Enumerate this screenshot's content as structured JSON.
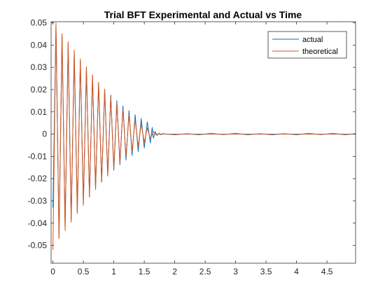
{
  "colors": {
    "actual": "#0072BD",
    "theoretical": "#D95319",
    "axis": "#262626",
    "background": "#ffffff"
  },
  "chart_data": {
    "type": "line",
    "title": "Trial BFT Experimental and Actual vs Time",
    "xlabel": "",
    "ylabel": "",
    "xlim": [
      -0.03,
      4.97
    ],
    "ylim": [
      -0.058,
      0.0505
    ],
    "xticks": [
      0,
      0.5,
      1,
      1.5,
      2,
      2.5,
      3,
      3.5,
      4,
      4.5
    ],
    "xtick_labels": [
      "0",
      "0.5",
      "1",
      "1.5",
      "2",
      "2.5",
      "3",
      "3.5",
      "4",
      "4.5"
    ],
    "yticks": [
      -0.05,
      -0.04,
      -0.03,
      -0.02,
      -0.01,
      0,
      0.01,
      0.02,
      0.03,
      0.04,
      0.05
    ],
    "ytick_labels": [
      "-0.05",
      "-0.04",
      "-0.03",
      "-0.02",
      "-0.01",
      "0",
      "0.01",
      "0.02",
      "0.03",
      "0.04",
      "0.05"
    ],
    "grid": false,
    "legend_position": "top-right",
    "series": [
      {
        "name": "actual",
        "color": "#0072BD",
        "points": [
          [
            0.0,
            -0.033
          ],
          [
            0.05,
            0.048
          ],
          [
            0.1,
            -0.0463
          ],
          [
            0.15,
            0.044
          ],
          [
            0.2,
            -0.0423
          ],
          [
            0.25,
            0.0405
          ],
          [
            0.3,
            -0.0385
          ],
          [
            0.35,
            0.0366
          ],
          [
            0.4,
            -0.0348
          ],
          [
            0.45,
            0.033
          ],
          [
            0.5,
            -0.0312
          ],
          [
            0.55,
            0.0295
          ],
          [
            0.6,
            -0.0278
          ],
          [
            0.65,
            0.0262
          ],
          [
            0.7,
            -0.0246
          ],
          [
            0.75,
            0.0231
          ],
          [
            0.8,
            -0.0216
          ],
          [
            0.85,
            0.0202
          ],
          [
            0.9,
            -0.0188
          ],
          [
            0.95,
            0.0175
          ],
          [
            1.0,
            -0.0162
          ],
          [
            1.05,
            0.015
          ],
          [
            1.1,
            -0.0138
          ],
          [
            1.15,
            0.0127
          ],
          [
            1.2,
            -0.0116
          ],
          [
            1.25,
            0.0106
          ],
          [
            1.3,
            -0.0096
          ],
          [
            1.35,
            0.0087
          ],
          [
            1.4,
            -0.0078
          ],
          [
            1.45,
            0.007
          ],
          [
            1.5,
            -0.0062
          ],
          [
            1.55,
            0.0055
          ],
          [
            1.6,
            -0.004
          ],
          [
            1.63,
            0.003
          ],
          [
            1.65,
            -0.0018
          ],
          [
            1.68,
            0.001
          ],
          [
            1.71,
            -0.0006
          ],
          [
            1.74,
            0.0004
          ],
          [
            1.77,
            -0.0003
          ],
          [
            1.8,
            0.0002
          ],
          [
            2.0,
            -0.0003
          ],
          [
            2.2,
            0.0002
          ],
          [
            2.4,
            -0.0003
          ],
          [
            2.6,
            0.0003
          ],
          [
            2.8,
            -0.0002
          ],
          [
            3.0,
            0.0003
          ],
          [
            3.2,
            -0.0003
          ],
          [
            3.4,
            0.0002
          ],
          [
            3.6,
            -0.0003
          ],
          [
            3.8,
            0.0002
          ],
          [
            4.0,
            -0.0003
          ],
          [
            4.2,
            0.0003
          ],
          [
            4.4,
            -0.0002
          ],
          [
            4.6,
            0.0003
          ],
          [
            4.8,
            -0.0003
          ],
          [
            4.97,
            0.0002
          ]
        ]
      },
      {
        "name": "theoretical",
        "color": "#D95319",
        "points": [
          [
            0.0,
            -0.052
          ],
          [
            0.05,
            0.05
          ],
          [
            0.1,
            -0.047
          ],
          [
            0.15,
            0.0452
          ],
          [
            0.2,
            -0.0433
          ],
          [
            0.25,
            0.0415
          ],
          [
            0.3,
            -0.0396
          ],
          [
            0.35,
            0.0377
          ],
          [
            0.4,
            -0.0357
          ],
          [
            0.45,
            0.0338
          ],
          [
            0.5,
            -0.032
          ],
          [
            0.55,
            0.0302
          ],
          [
            0.6,
            -0.0284
          ],
          [
            0.65,
            0.0266
          ],
          [
            0.7,
            -0.0249
          ],
          [
            0.75,
            0.0232
          ],
          [
            0.8,
            -0.0215
          ],
          [
            0.85,
            0.0199
          ],
          [
            0.9,
            -0.0183
          ],
          [
            0.95,
            0.0168
          ],
          [
            1.0,
            -0.0153
          ],
          [
            1.05,
            0.0139
          ],
          [
            1.1,
            -0.0125
          ],
          [
            1.15,
            0.0112
          ],
          [
            1.2,
            -0.01
          ],
          [
            1.25,
            0.0088
          ],
          [
            1.3,
            -0.0077
          ],
          [
            1.35,
            0.0066
          ],
          [
            1.4,
            -0.0056
          ],
          [
            1.45,
            0.0046
          ],
          [
            1.5,
            -0.0037
          ],
          [
            1.55,
            0.0028
          ],
          [
            1.6,
            -0.002
          ],
          [
            1.65,
            0.0012
          ],
          [
            1.7,
            -0.0004
          ],
          [
            1.73,
            0.0
          ],
          [
            4.97,
            0.0
          ]
        ]
      }
    ]
  }
}
